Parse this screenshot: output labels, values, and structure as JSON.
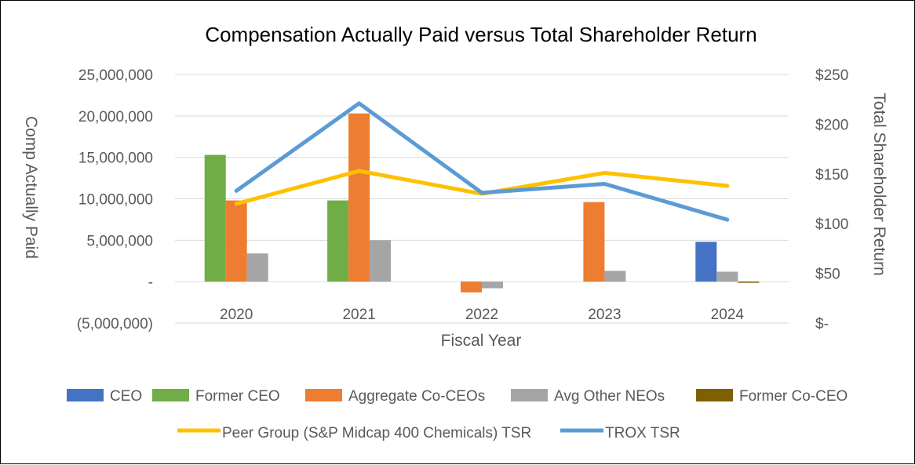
{
  "chart_data": {
    "type": "bar",
    "title": "Compensation Actually Paid versus Total Shareholder Return",
    "xlabel": "Fiscal Year",
    "ylabel": "Comp Actually Paid",
    "y2label": "Total Shareholder Return",
    "categories": [
      "2020",
      "2021",
      "2022",
      "2023",
      "2024"
    ],
    "ylim": [
      -5000000,
      25000000
    ],
    "yticks": [
      -5000000,
      0,
      5000000,
      10000000,
      15000000,
      20000000,
      25000000
    ],
    "ytick_labels": [
      "(5,000,000)",
      "-",
      "5,000,000",
      "10,000,000",
      "15,000,000",
      "20,000,000",
      "25,000,000"
    ],
    "y2lim": [
      0,
      250
    ],
    "y2ticks": [
      0,
      50,
      100,
      150,
      200,
      250
    ],
    "y2tick_labels": [
      "$-",
      "$50",
      "$100",
      "$150",
      "$200",
      "$250"
    ],
    "grid": true,
    "legend_position": "bottom",
    "bar_series": [
      {
        "name": "CEO",
        "color": "#4472C4",
        "values": [
          null,
          null,
          null,
          null,
          4800000
        ]
      },
      {
        "name": "Former CEO",
        "color": "#70AD47",
        "values": [
          15300000,
          9800000,
          null,
          null,
          null
        ]
      },
      {
        "name": "Aggregate Co-CEOs",
        "color": "#ED7D31",
        "values": [
          9800000,
          20300000,
          -1300000,
          9600000,
          null
        ]
      },
      {
        "name": "Avg Other NEOs",
        "color": "#A5A5A5",
        "values": [
          3400000,
          5000000,
          -800000,
          1300000,
          1200000
        ]
      },
      {
        "name": "Former Co-CEO",
        "color": "#7F6000",
        "values": [
          null,
          null,
          null,
          null,
          -100000
        ]
      }
    ],
    "line_series": [
      {
        "name": "Peer Group (S&P Midcap 400 Chemicals) TSR",
        "color": "#FFC000",
        "axis": "secondary",
        "values": [
          120,
          153,
          130,
          151,
          138
        ]
      },
      {
        "name": "TROX TSR",
        "color": "#5B9BD5",
        "axis": "secondary",
        "values": [
          133,
          221,
          131,
          140,
          104
        ]
      }
    ]
  }
}
